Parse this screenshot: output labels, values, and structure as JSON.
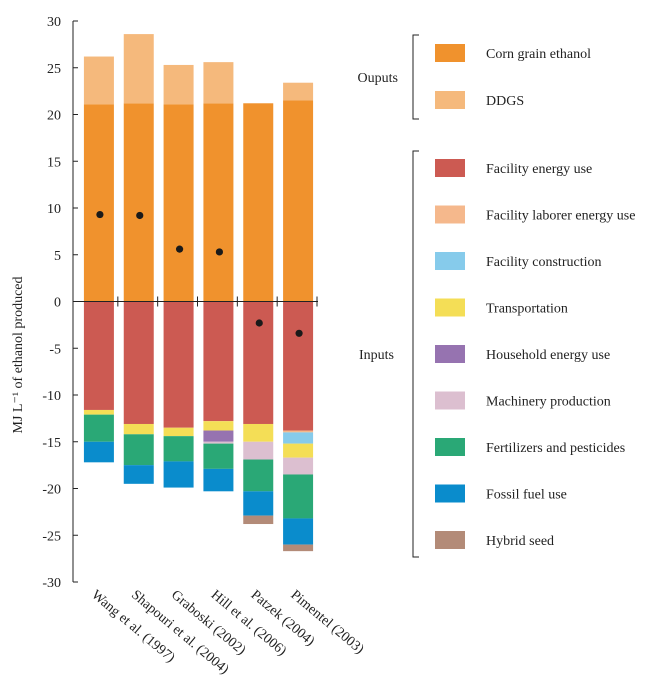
{
  "chart_data": {
    "type": "bar",
    "stacked": true,
    "ylabel": "MJ L⁻¹ of ethanol produced",
    "ylim": [
      -30,
      30
    ],
    "yticks": [
      30,
      25,
      20,
      15,
      10,
      5,
      0,
      -5,
      -10,
      -15,
      -20,
      -25,
      -30
    ],
    "categories": [
      "Wang et al. (1997)",
      "Shapouri et al. (2004)",
      "Graboski (2002)",
      "Hill et al. (2006)",
      "Patzek (2004)",
      "Pimentel (2003)"
    ],
    "outputs_label": "Ouputs",
    "inputs_label": "Inputs",
    "output_series": [
      {
        "name": "Corn grain ethanol",
        "color": "#f0922d",
        "values": [
          21.1,
          21.2,
          21.1,
          21.2,
          21.2,
          21.5
        ]
      },
      {
        "name": "DDGS",
        "color": "#f5b97c",
        "values": [
          5.1,
          7.4,
          4.2,
          4.4,
          0,
          1.9
        ]
      }
    ],
    "input_series": [
      {
        "name": "Facility energy use",
        "color": "#cc5a52",
        "values": [
          11.6,
          13.1,
          13.5,
          12.8,
          13.1,
          13.8
        ]
      },
      {
        "name": "Facility laborer energy use",
        "color": "#f5b88c",
        "values": [
          0,
          0,
          0,
          0,
          0,
          0.2
        ]
      },
      {
        "name": "Facility construction",
        "color": "#86cbeb",
        "values": [
          0,
          0,
          0,
          0,
          0,
          1.2
        ]
      },
      {
        "name": "Transportation",
        "color": "#f4de56",
        "values": [
          0.5,
          1.1,
          0.9,
          1.0,
          1.9,
          1.5
        ]
      },
      {
        "name": "Household energy use",
        "color": "#9673b0",
        "values": [
          0,
          0,
          0,
          1.2,
          0,
          0
        ]
      },
      {
        "name": "Machinery production",
        "color": "#dcbfd0",
        "values": [
          0,
          0,
          0,
          0.2,
          1.9,
          1.8
        ]
      },
      {
        "name": "Fertilizers and pesticides",
        "color": "#2aa876",
        "values": [
          2.9,
          3.3,
          2.7,
          2.7,
          3.4,
          4.7
        ]
      },
      {
        "name": "Fossil fuel use",
        "color": "#0a8ccc",
        "values": [
          2.2,
          2.0,
          2.8,
          2.4,
          2.6,
          2.8
        ]
      },
      {
        "name": "Hybrid seed",
        "color": "#b38b78",
        "values": [
          0,
          0,
          0,
          0,
          0.9,
          0.7
        ]
      }
    ],
    "net_points": [
      9.3,
      9.2,
      5.6,
      5.3,
      -2.3,
      -3.4
    ]
  }
}
